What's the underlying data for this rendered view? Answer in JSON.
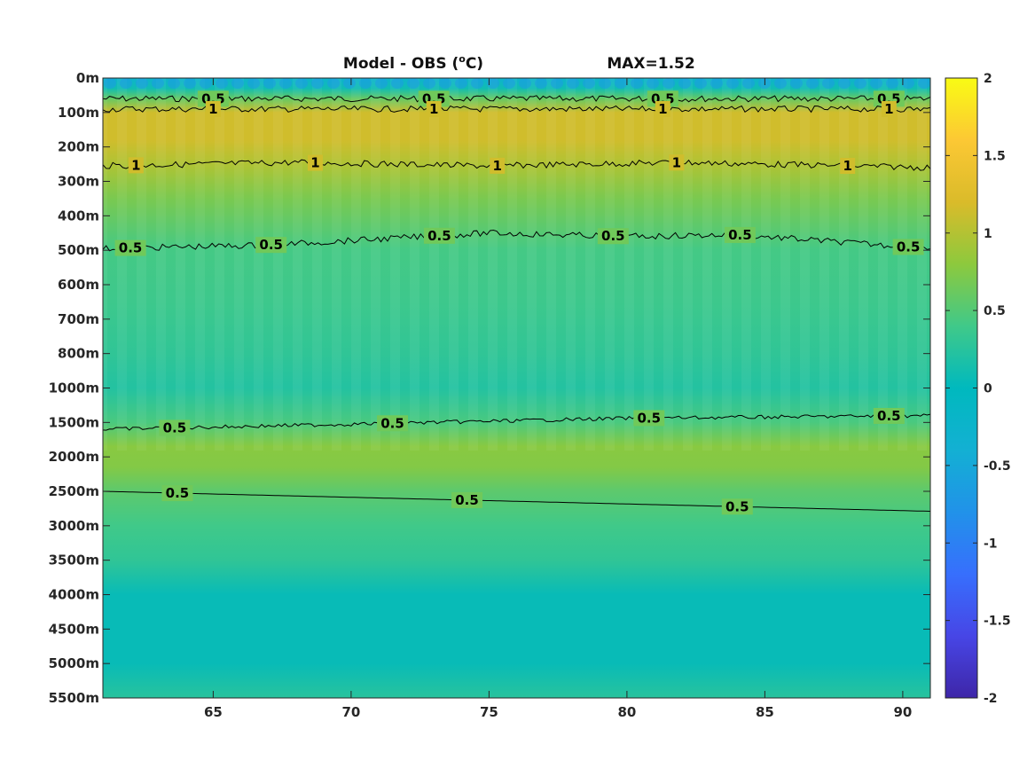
{
  "chart_data": {
    "type": "heatmap",
    "title": "Model - OBS (°C)",
    "title_main": "Model - OBS (",
    "title_sup": "o",
    "title_end": "C)",
    "max_label": "MAX=1.52",
    "x_ticks": [
      65,
      70,
      75,
      80,
      85,
      90
    ],
    "x_range": [
      61,
      91
    ],
    "y_tick_labels": [
      "0m",
      "100m",
      "200m",
      "300m",
      "400m",
      "500m",
      "600m",
      "700m",
      "800m",
      "1000m",
      "1500m",
      "2000m",
      "2500m",
      "3000m",
      "3500m",
      "4000m",
      "4500m",
      "5000m",
      "5500m"
    ],
    "y_reversed": true,
    "colorbar": {
      "range": [
        -2,
        2
      ],
      "ticks": [
        2,
        1.5,
        1,
        0.5,
        0,
        -0.5,
        -1,
        -1.5,
        -2
      ],
      "tick_labels": [
        "2",
        "1.5",
        "1",
        "0.5",
        "0",
        "-0.5",
        "-1",
        "-1.5",
        "-2"
      ],
      "colormap": "parula"
    },
    "profile_by_depth_index": [
      {
        "depth_index": 0.0,
        "value": -0.3
      },
      {
        "depth_index": 0.3,
        "value": 0.1
      },
      {
        "depth_index": 0.6,
        "value": 0.6
      },
      {
        "depth_index": 1.0,
        "value": 1.15
      },
      {
        "depth_index": 1.8,
        "value": 1.15
      },
      {
        "depth_index": 2.6,
        "value": 0.95
      },
      {
        "depth_index": 3.5,
        "value": 0.7
      },
      {
        "depth_index": 5.0,
        "value": 0.42
      },
      {
        "depth_index": 6.5,
        "value": 0.38
      },
      {
        "depth_index": 8.0,
        "value": 0.3
      },
      {
        "depth_index": 9.0,
        "value": 0.22
      },
      {
        "depth_index": 10.0,
        "value": 0.45
      },
      {
        "depth_index": 10.7,
        "value": 0.78
      },
      {
        "depth_index": 11.3,
        "value": 0.75
      },
      {
        "depth_index": 12.0,
        "value": 0.55
      },
      {
        "depth_index": 13.0,
        "value": 0.4
      },
      {
        "depth_index": 14.0,
        "value": 0.3
      },
      {
        "depth_index": 15.0,
        "value": 0.05
      },
      {
        "depth_index": 17.0,
        "value": 0.05
      },
      {
        "depth_index": 18.0,
        "value": 0.25
      }
    ],
    "contours": [
      {
        "level": 0.5,
        "depth_index_at_x": [
          [
            61,
            0.6
          ],
          [
            91,
            0.6
          ]
        ],
        "wiggle": 1,
        "labels_x": [
          65,
          73,
          81.3,
          89.5
        ]
      },
      {
        "level": 1,
        "depth_index_at_x": [
          [
            61,
            0.9
          ],
          [
            91,
            0.9
          ]
        ],
        "wiggle": 1,
        "labels_x": [
          65,
          73,
          81.3,
          89.5
        ]
      },
      {
        "level": 1,
        "depth_index_at_x": [
          [
            61,
            2.55
          ],
          [
            68,
            2.45
          ],
          [
            75,
            2.55
          ],
          [
            82,
            2.45
          ],
          [
            91,
            2.6
          ]
        ],
        "wiggle": 1,
        "labels_x": [
          62.2,
          68.7,
          75.3,
          81.8,
          88
        ]
      },
      {
        "level": 0.5,
        "depth_index_at_x": [
          [
            61,
            4.95
          ],
          [
            67,
            4.85
          ],
          [
            75,
            4.5
          ],
          [
            80,
            4.6
          ],
          [
            84,
            4.55
          ],
          [
            91,
            4.95
          ]
        ],
        "wiggle": 1,
        "labels_x": [
          62,
          67.1,
          73.2,
          79.5,
          84.1,
          90.2
        ]
      },
      {
        "level": 0.5,
        "depth_index_at_x": [
          [
            61,
            10.2
          ],
          [
            70,
            10.05
          ],
          [
            80,
            9.88
          ],
          [
            91,
            9.8
          ]
        ],
        "wiggle": 0.6,
        "labels_x": [
          63.6,
          71.5,
          80.8,
          89.5
        ]
      },
      {
        "level": 0.5,
        "depth_index_at_x": [
          [
            61,
            12.0
          ],
          [
            91,
            12.58
          ]
        ],
        "wiggle": 0,
        "labels_x": [
          63.7,
          74.2,
          84
        ]
      }
    ],
    "contour_label": "0.5",
    "contour_label_one": "1"
  }
}
